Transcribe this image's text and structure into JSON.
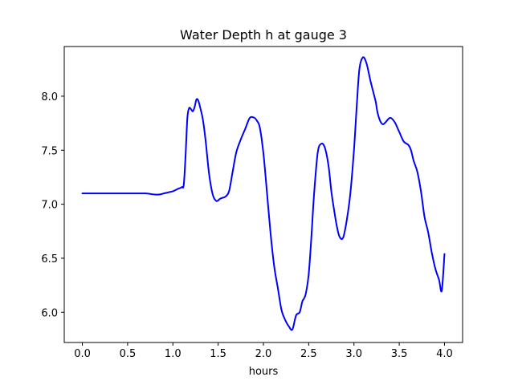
{
  "chart_data": {
    "type": "line",
    "title": "Water Depth h at gauge 3",
    "xlabel": "hours",
    "ylabel": "",
    "xlim": [
      -0.2,
      4.2
    ],
    "ylim": [
      5.72,
      8.46
    ],
    "xticks": [
      0.0,
      0.5,
      1.0,
      1.5,
      2.0,
      2.5,
      3.0,
      3.5,
      4.0
    ],
    "xtick_labels": [
      "0.0",
      "0.5",
      "1.0",
      "1.5",
      "2.0",
      "2.5",
      "3.0",
      "3.5",
      "4.0"
    ],
    "yticks": [
      6.0,
      6.5,
      7.0,
      7.5,
      8.0
    ],
    "ytick_labels": [
      "6.0",
      "6.5",
      "7.0",
      "7.5",
      "8.0"
    ],
    "grid": false,
    "legend": "none",
    "series": [
      {
        "color": "#0000ff",
        "x": [
          0.0,
          0.2,
          0.4,
          0.6,
          0.7,
          0.8,
          0.85,
          0.9,
          0.95,
          1.0,
          1.05,
          1.08,
          1.1,
          1.12,
          1.14,
          1.16,
          1.18,
          1.2,
          1.22,
          1.24,
          1.26,
          1.28,
          1.3,
          1.33,
          1.36,
          1.4,
          1.44,
          1.48,
          1.52,
          1.55,
          1.58,
          1.62,
          1.66,
          1.7,
          1.75,
          1.8,
          1.85,
          1.9,
          1.93,
          1.96,
          2.0,
          2.04,
          2.08,
          2.12,
          2.16,
          2.2,
          2.24,
          2.28,
          2.32,
          2.36,
          2.4,
          2.43,
          2.45,
          2.47,
          2.5,
          2.53,
          2.56,
          2.6,
          2.64,
          2.68,
          2.72,
          2.75,
          2.78,
          2.81,
          2.84,
          2.88,
          2.92,
          2.96,
          3.0,
          3.03,
          3.06,
          3.1,
          3.14,
          3.18,
          3.21,
          3.24,
          3.26,
          3.29,
          3.32,
          3.35,
          3.4,
          3.45,
          3.5,
          3.55,
          3.6,
          3.63,
          3.66,
          3.7,
          3.74,
          3.78,
          3.82,
          3.86,
          3.9,
          3.94,
          3.97,
          4.0
        ],
        "y": [
          7.1,
          7.1,
          7.1,
          7.1,
          7.1,
          7.09,
          7.09,
          7.1,
          7.11,
          7.12,
          7.14,
          7.15,
          7.16,
          7.18,
          7.45,
          7.8,
          7.89,
          7.88,
          7.86,
          7.9,
          7.97,
          7.96,
          7.9,
          7.79,
          7.6,
          7.28,
          7.09,
          7.03,
          7.05,
          7.06,
          7.07,
          7.12,
          7.3,
          7.48,
          7.6,
          7.7,
          7.8,
          7.8,
          7.77,
          7.71,
          7.47,
          7.1,
          6.72,
          6.42,
          6.22,
          6.02,
          5.93,
          5.87,
          5.84,
          5.97,
          6.0,
          6.1,
          6.13,
          6.18,
          6.35,
          6.7,
          7.1,
          7.48,
          7.56,
          7.52,
          7.35,
          7.12,
          6.95,
          6.8,
          6.7,
          6.69,
          6.85,
          7.1,
          7.5,
          7.9,
          8.25,
          8.36,
          8.3,
          8.15,
          8.05,
          7.95,
          7.85,
          7.77,
          7.74,
          7.76,
          7.8,
          7.76,
          7.67,
          7.58,
          7.55,
          7.5,
          7.4,
          7.3,
          7.12,
          6.88,
          6.74,
          6.55,
          6.4,
          6.3,
          6.2,
          6.54
        ]
      }
    ]
  }
}
